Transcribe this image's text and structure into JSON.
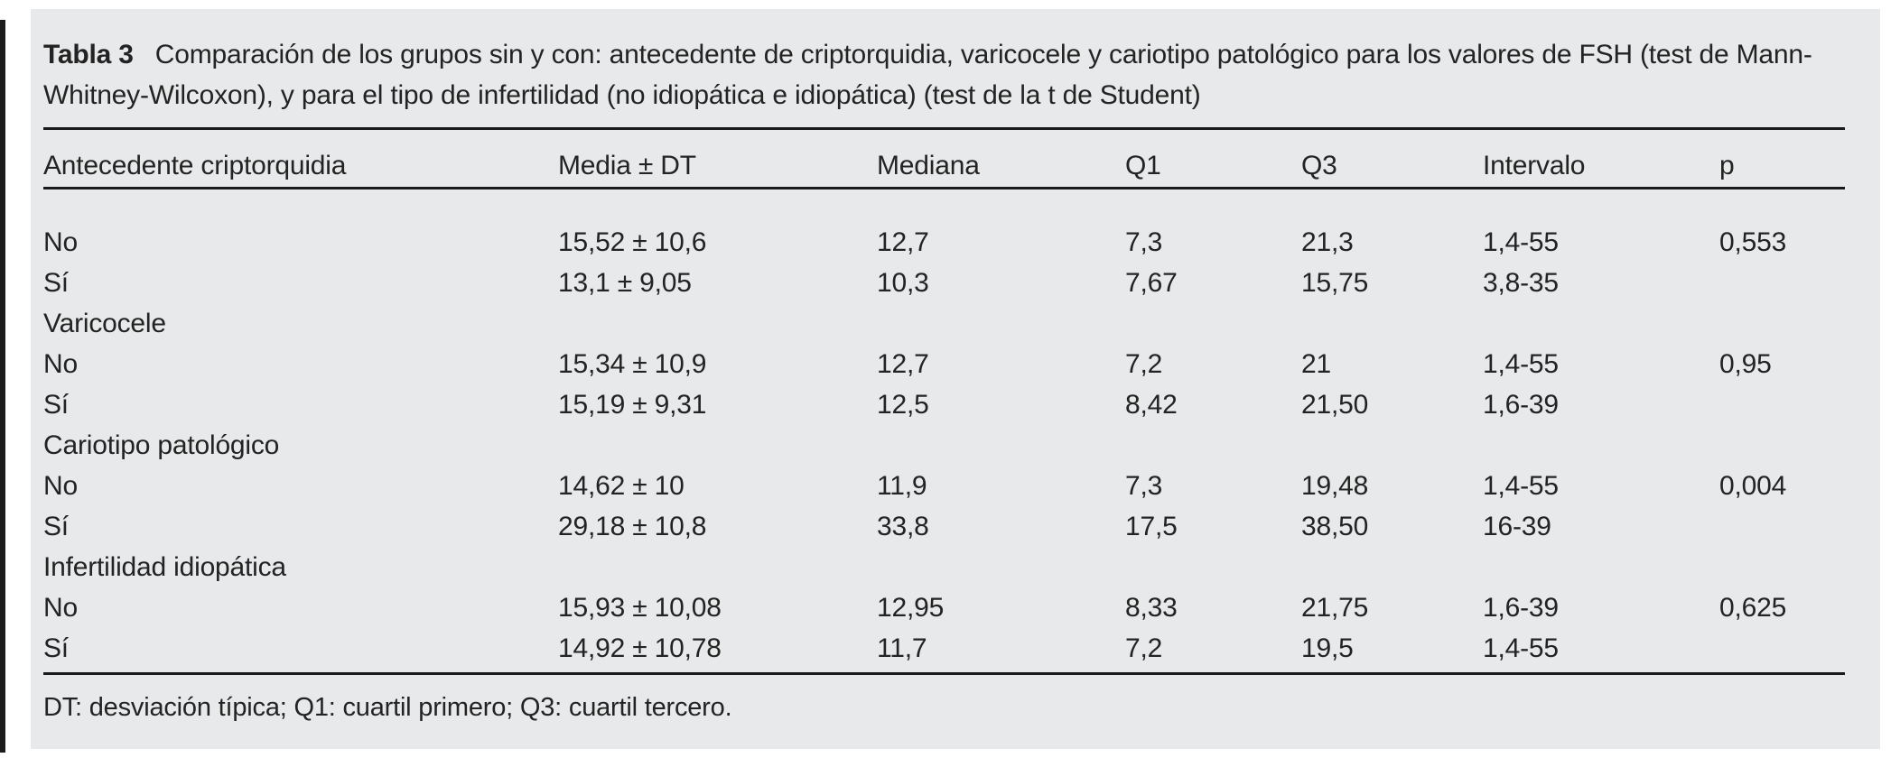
{
  "colors": {
    "panel_background": "#e8e9ea",
    "text": "#232323",
    "rule": "#1a1a1a",
    "page_background": "#ffffff"
  },
  "table": {
    "title_label": "Tabla 3",
    "title_text": "Comparación de los grupos sin y con: antecedente de criptorquidia, varicocele y cariotipo patológico para los valores de FSH (test de Mann-Whitney-Wilcoxon), y para el tipo de infertilidad (no idiopática e idiopática) (test de la t de Student)",
    "columns": [
      "Antecedente criptorquidia",
      "Media ± DT",
      "Mediana",
      "Q1",
      "Q3",
      "Intervalo",
      "p"
    ],
    "rows": [
      {
        "section": false,
        "cells": [
          "No",
          "15,52 ± 10,6",
          "12,7",
          "7,3",
          "21,3",
          "1,4-55",
          "0,553"
        ]
      },
      {
        "section": false,
        "cells": [
          "Sí",
          "13,1 ± 9,05",
          "10,3",
          "7,67",
          "15,75",
          "3,8-35",
          ""
        ]
      },
      {
        "section": true,
        "cells": [
          "Varicocele",
          "",
          "",
          "",
          "",
          "",
          ""
        ]
      },
      {
        "section": false,
        "cells": [
          "No",
          "15,34 ± 10,9",
          "12,7",
          "7,2",
          "21",
          "1,4-55",
          "0,95"
        ]
      },
      {
        "section": false,
        "cells": [
          "Sí",
          "15,19 ± 9,31",
          "12,5",
          "8,42",
          "21,50",
          "1,6-39",
          ""
        ]
      },
      {
        "section": true,
        "cells": [
          "Cariotipo patológico",
          "",
          "",
          "",
          "",
          "",
          ""
        ]
      },
      {
        "section": false,
        "cells": [
          "No",
          "14,62 ± 10",
          "11,9",
          "7,3",
          "19,48",
          "1,4-55",
          "0,004"
        ]
      },
      {
        "section": false,
        "cells": [
          "Sí",
          "29,18 ± 10,8",
          "33,8",
          "17,5",
          "38,50",
          "16-39",
          ""
        ]
      },
      {
        "section": true,
        "cells": [
          "Infertilidad idiopática",
          "",
          "",
          "",
          "",
          "",
          ""
        ]
      },
      {
        "section": false,
        "cells": [
          "No",
          "15,93 ± 10,08",
          "12,95",
          "8,33",
          "21,75",
          "1,6-39",
          "0,625"
        ]
      },
      {
        "section": false,
        "cells": [
          "Sí",
          "14,92 ± 10,78",
          "11,7",
          "7,2",
          "19,5",
          "1,4-55",
          ""
        ]
      }
    ],
    "footnote": "DT: desviación típica; Q1: cuartil primero; Q3: cuartil tercero."
  }
}
